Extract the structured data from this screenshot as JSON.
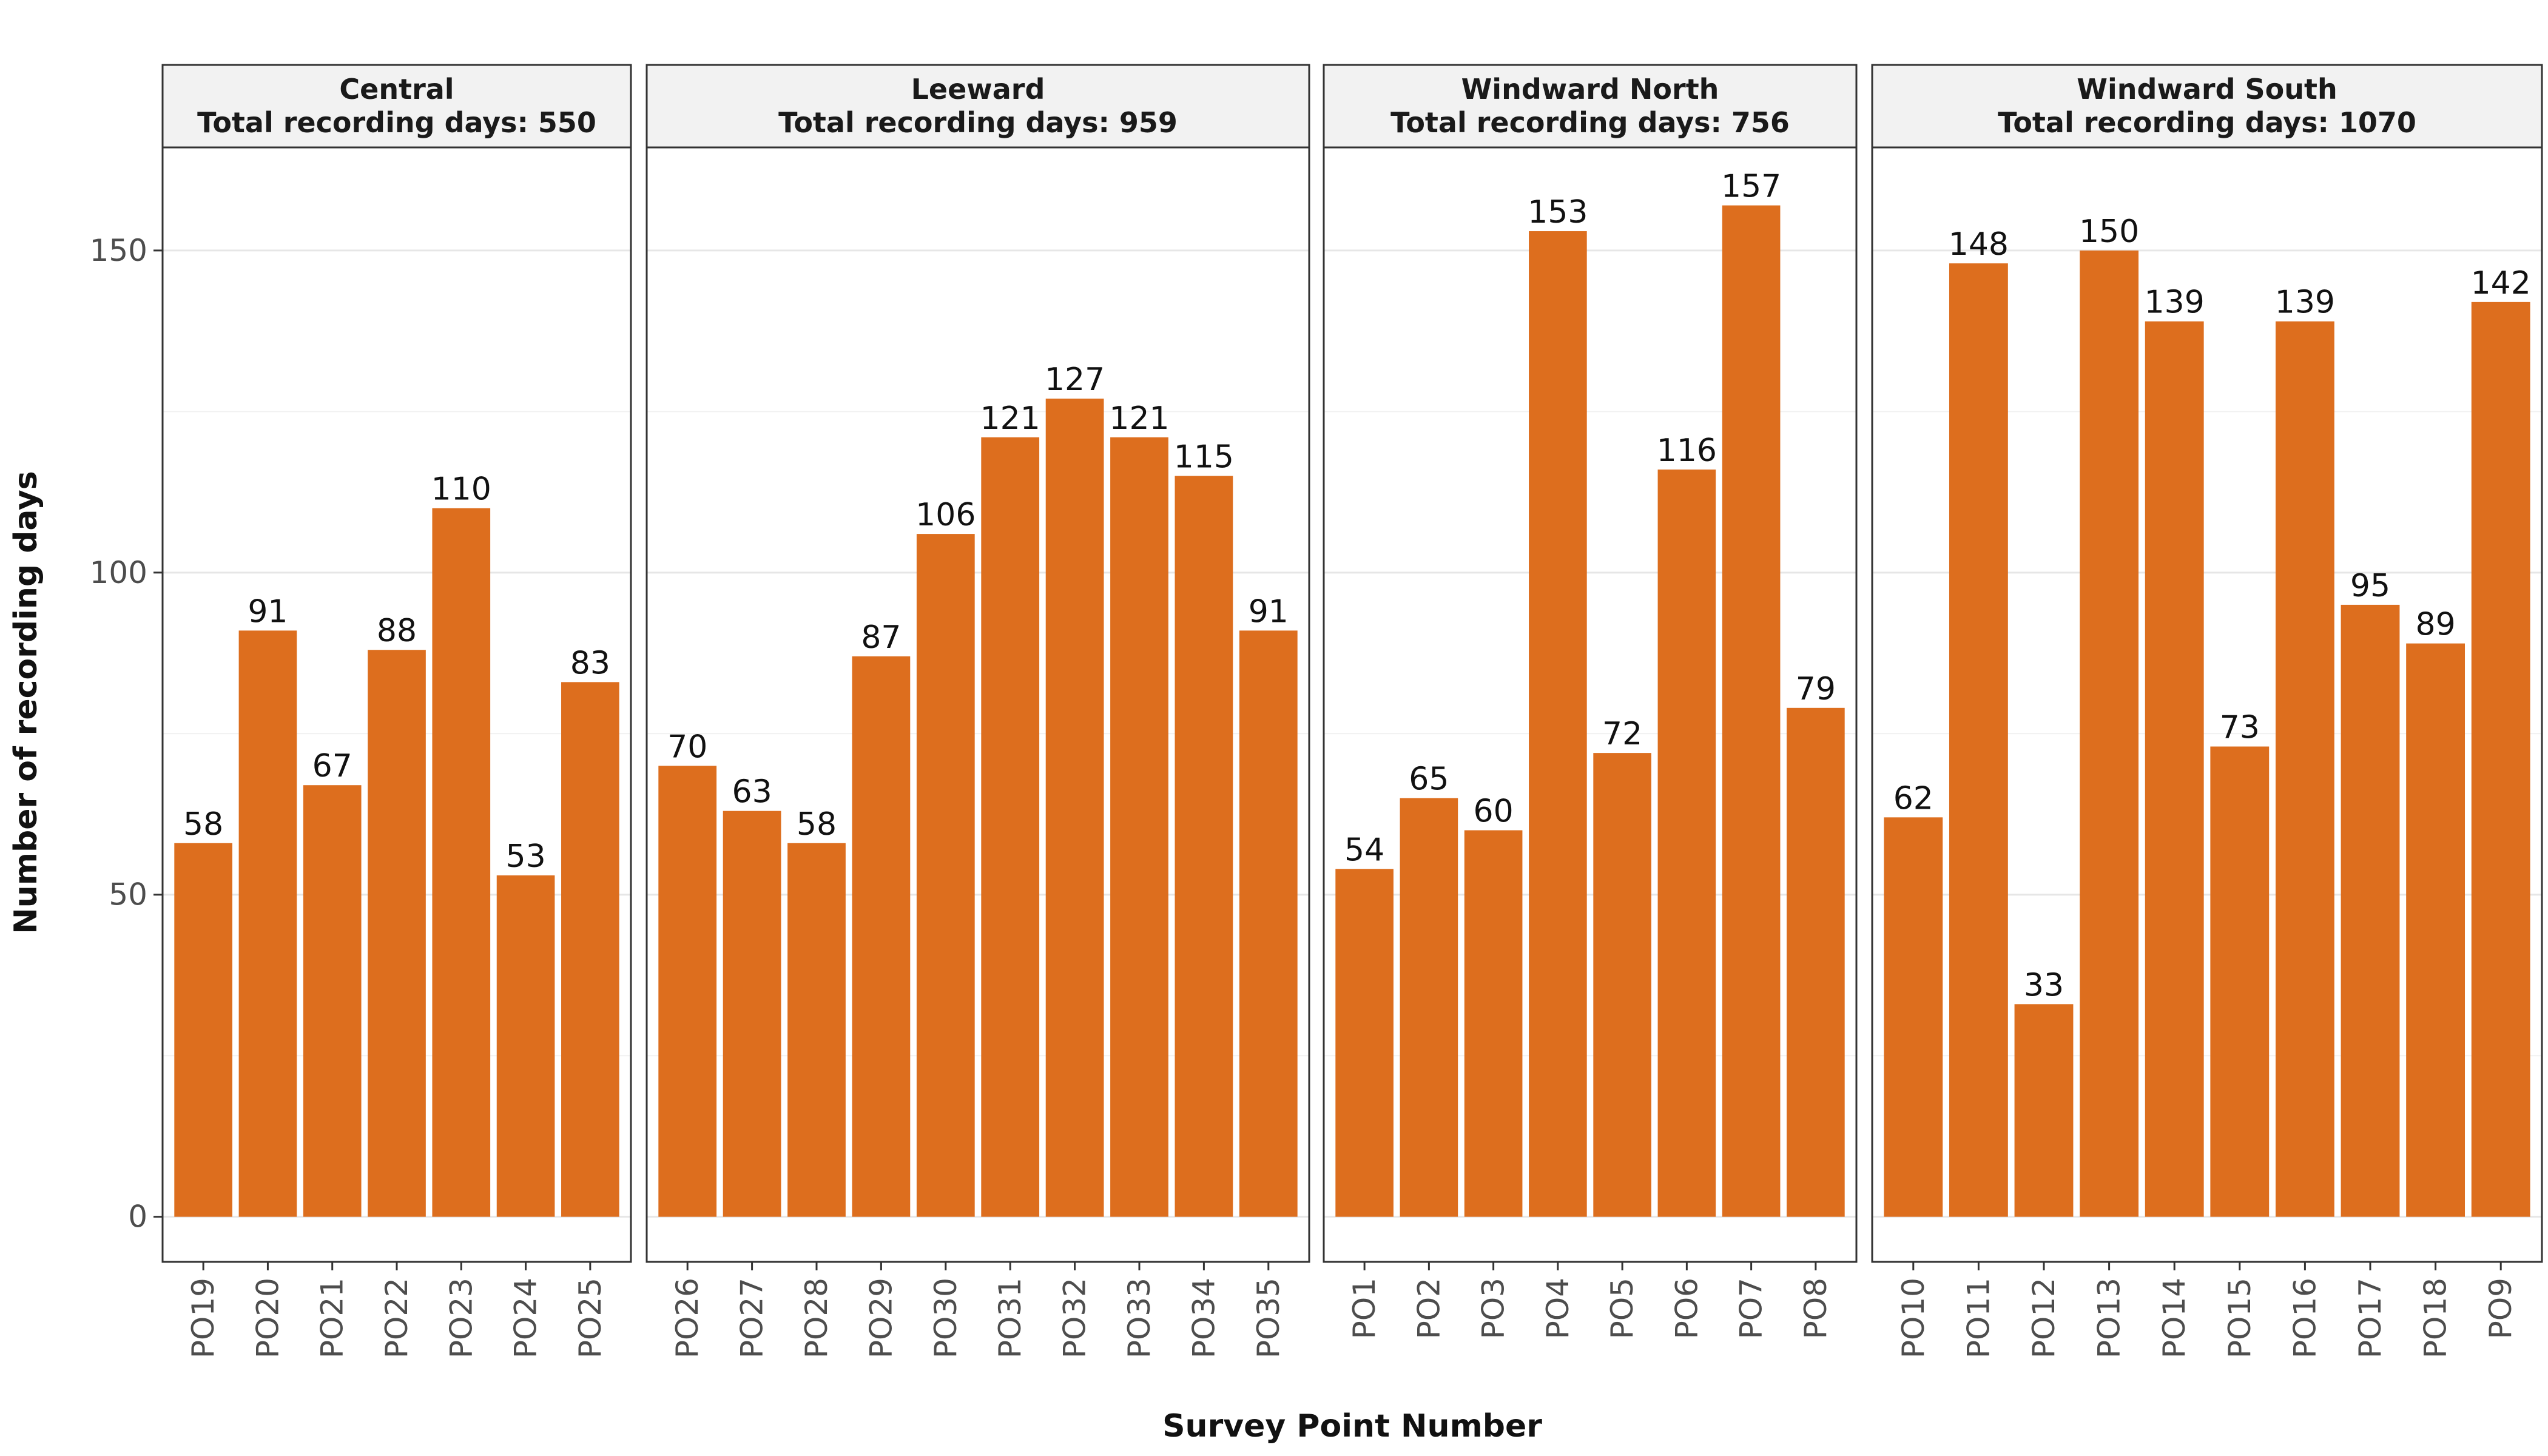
{
  "chart_data": {
    "type": "bar",
    "xlabel": "Survey Point Number",
    "ylabel": "Number of recording days",
    "ylim": [
      -7,
      166
    ],
    "yticks": [
      0,
      50,
      100,
      150
    ],
    "grid": true,
    "bar_color": "#DD6E1E",
    "facets": [
      {
        "name": "Central",
        "subtitle": "Total recording days: 550",
        "categories": [
          "PO19",
          "PO20",
          "PO21",
          "PO22",
          "PO23",
          "PO24",
          "PO25"
        ],
        "values": [
          58,
          91,
          67,
          88,
          110,
          53,
          83
        ]
      },
      {
        "name": "Leeward",
        "subtitle": "Total recording days: 959",
        "categories": [
          "PO26",
          "PO27",
          "PO28",
          "PO29",
          "PO30",
          "PO31",
          "PO32",
          "PO33",
          "PO34",
          "PO35"
        ],
        "values": [
          70,
          63,
          58,
          87,
          106,
          121,
          127,
          121,
          115,
          91
        ]
      },
      {
        "name": "Windward North",
        "subtitle": "Total recording days: 756",
        "categories": [
          "PO1",
          "PO2",
          "PO3",
          "PO4",
          "PO5",
          "PO6",
          "PO7",
          "PO8"
        ],
        "values": [
          54,
          65,
          60,
          153,
          72,
          116,
          157,
          79
        ]
      },
      {
        "name": "Windward South",
        "subtitle": "Total recording days: 1070",
        "categories": [
          "PO10",
          "PO11",
          "PO12",
          "PO13",
          "PO14",
          "PO15",
          "PO16",
          "PO17",
          "PO18",
          "PO9"
        ],
        "values": [
          62,
          148,
          33,
          150,
          139,
          73,
          139,
          95,
          89,
          142
        ]
      }
    ]
  }
}
